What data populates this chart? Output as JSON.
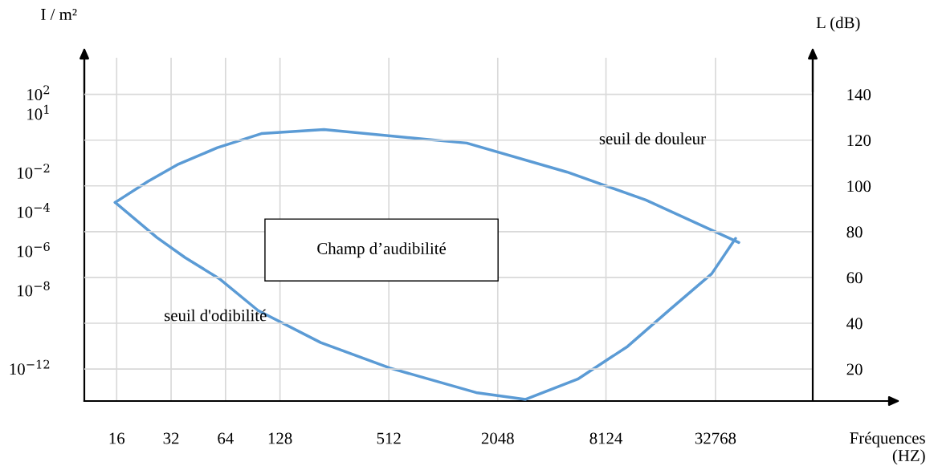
{
  "chart_data": {
    "type": "line",
    "xlabel": "Fréquences (HZ)",
    "ylabel": "I / m²",
    "y2label": "L (dB)",
    "log": "xy",
    "xlim": [
      10.6,
      113000
    ],
    "xticks": [
      16,
      32,
      64,
      128,
      512,
      2048,
      8124,
      32768
    ],
    "ylim": [
      2.3e-14,
      7400
    ],
    "yticks": [
      {
        "value": 100,
        "label": "10$^{2}$"
      },
      {
        "value": 10,
        "label": "10$^{1}$"
      },
      {
        "value": 0.01,
        "label": "10$^{−2}$"
      },
      {
        "value": 0.0001,
        "label": "10$^{−4}$"
      },
      {
        "value": 1e-06,
        "label": "10$^{−6}$"
      },
      {
        "value": 1e-08,
        "label": "10$^{−8}$"
      },
      {
        "value": 1e-12,
        "label": "10$^{−12}$"
      }
    ],
    "y2lim": [
      6,
      156
    ],
    "y2ticks": [
      20,
      40,
      60,
      80,
      100,
      120,
      140
    ],
    "grid": true,
    "series": [
      {
        "name": "seuil de douleur",
        "color": "#5b9bd5",
        "x": [
          15.7,
          23.8,
          35.2,
          57.7,
          101,
          224,
          1380,
          4940,
          13500,
          44100
        ],
        "values": [
          0.00031,
          0.0036,
          0.028,
          0.19,
          1.0,
          1.6,
          0.33,
          0.011,
          0.00041,
          2.8e-06
        ]
      },
      {
        "name": "seuil d'odibilité",
        "color": "#5b9bd5",
        "x": [
          15.7,
          26.7,
          38.3,
          58.9,
          97,
          215,
          519,
          1580,
          2920,
          5670,
          10700,
          18400,
          31200,
          42300
        ],
        "values": [
          0.00031,
          5e-06,
          4.7e-07,
          4.1e-08,
          9.4e-10,
          2.2e-11,
          1.1e-12,
          6e-14,
          2.8e-14,
          3e-13,
          1.4e-11,
          1.1e-09,
          7.1e-08,
          4.5e-06
        ]
      }
    ],
    "annotations": [
      "Champ d’audibilité"
    ]
  }
}
